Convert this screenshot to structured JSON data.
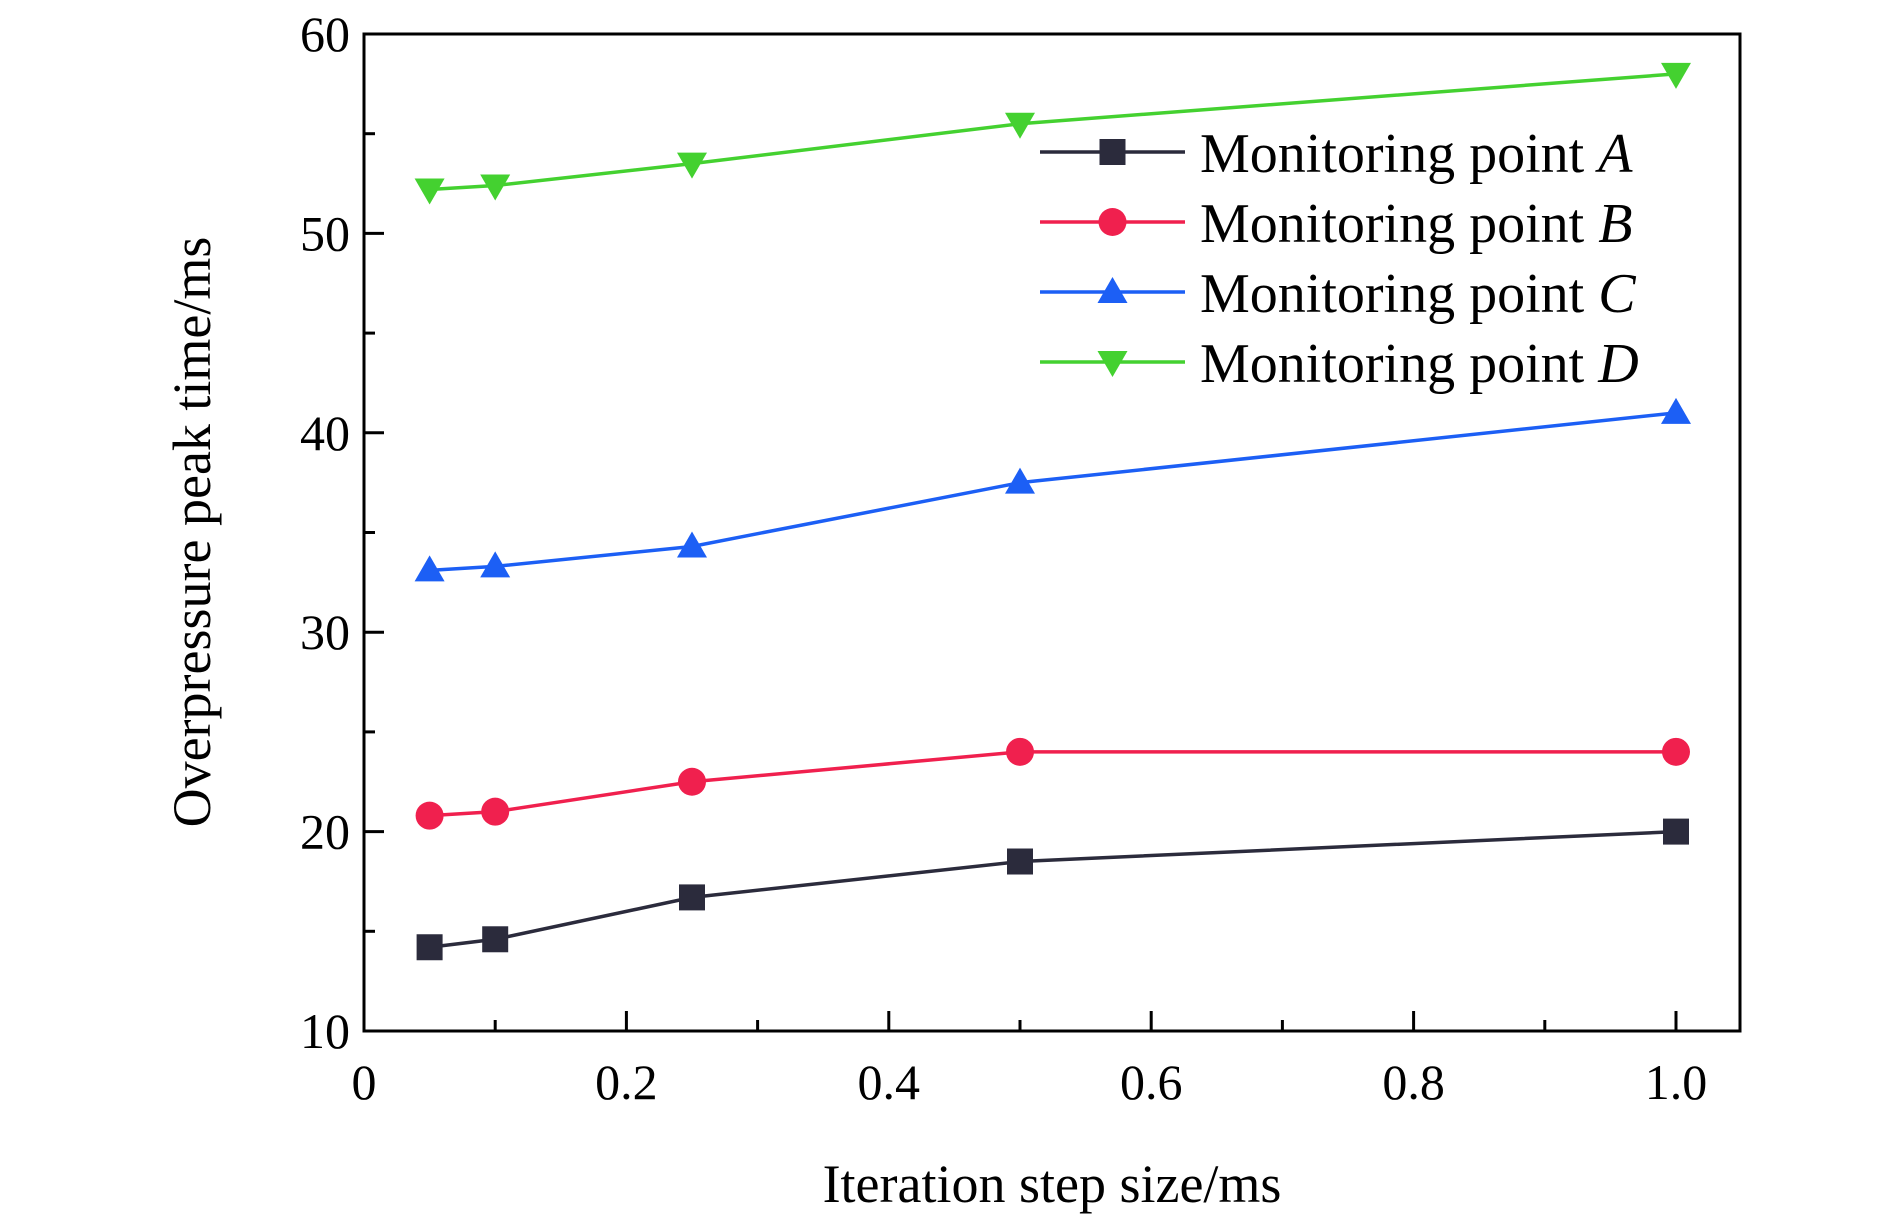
{
  "chart_data": {
    "type": "line",
    "xlabel": "Iteration step size/ms",
    "ylabel": "Overpressure peak time/ms",
    "xlim": [
      0,
      1.05
    ],
    "ylim": [
      10,
      60
    ],
    "xticks": [
      0,
      0.2,
      0.4,
      0.6,
      0.8,
      1.0
    ],
    "xtick_labels": [
      "0",
      "0.2",
      "0.4",
      "0.6",
      "0.8",
      "1.0"
    ],
    "yticks": [
      10,
      20,
      30,
      40,
      50,
      60
    ],
    "ytick_labels": [
      "10",
      "20",
      "30",
      "40",
      "50",
      "60"
    ],
    "legend_position": "top-right",
    "grid": false,
    "x": [
      0.05,
      0.1,
      0.25,
      0.5,
      1.0
    ],
    "series": [
      {
        "name": "Monitoring point ",
        "name_italic": "A",
        "color": "#2b2b3c",
        "marker": "square",
        "values": [
          14.2,
          14.6,
          16.7,
          18.5,
          20.0
        ]
      },
      {
        "name": "Monitoring point ",
        "name_italic": "B",
        "color": "#f0204e",
        "marker": "circle",
        "values": [
          20.8,
          21.0,
          22.5,
          24.0,
          24.0
        ]
      },
      {
        "name": "Monitoring point ",
        "name_italic": "C",
        "color": "#1c5ff5",
        "marker": "triangle-up",
        "values": [
          33.1,
          33.3,
          34.3,
          37.5,
          41.0
        ]
      },
      {
        "name": "Monitoring point ",
        "name_italic": "D",
        "color": "#44d130",
        "marker": "triangle-down",
        "values": [
          52.2,
          52.4,
          53.5,
          55.5,
          58.0
        ]
      }
    ]
  }
}
